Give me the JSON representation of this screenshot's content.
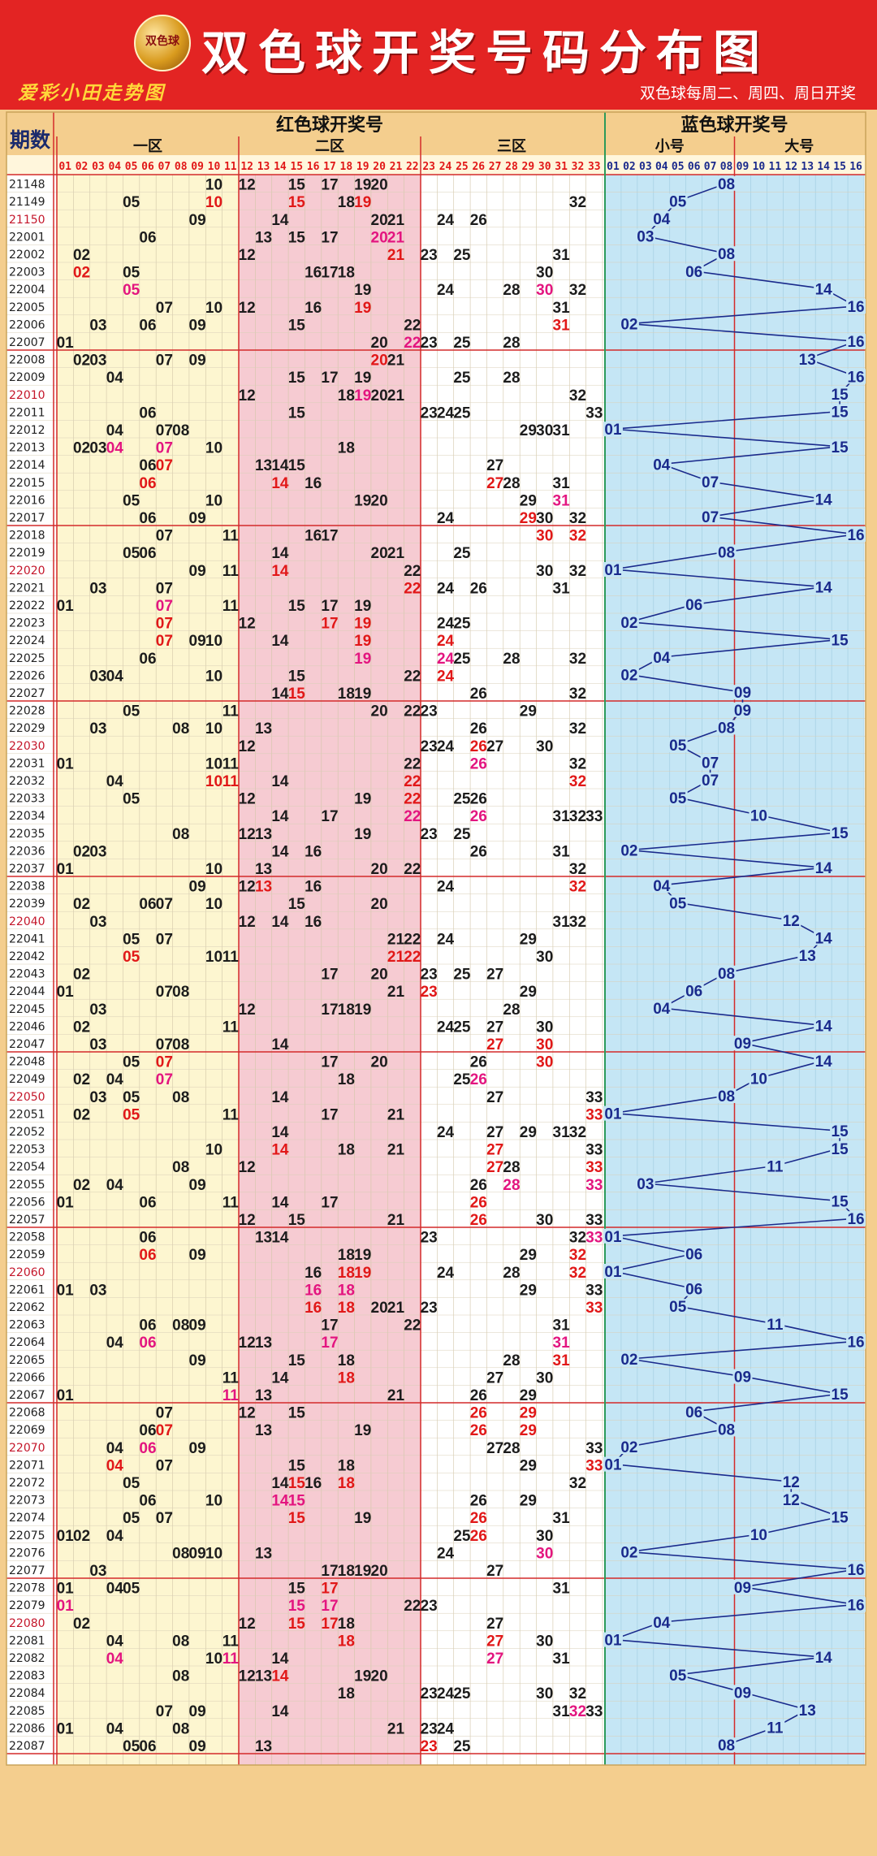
{
  "header": {
    "logo_text": "双色球",
    "title": "双色球开奖号码分布图",
    "brand": "爱彩小田走势图",
    "subtitle": "双色球每周二、周四、周日开奖"
  },
  "chart_data": {
    "type": "table",
    "period_header": "期数",
    "red_header": "红色球开奖号",
    "blue_header": "蓝色球开奖号",
    "zones": [
      "一区",
      "二区",
      "三区"
    ],
    "blue_zones": [
      "小号",
      "大号"
    ],
    "red_numbers": [
      "01",
      "02",
      "03",
      "04",
      "05",
      "06",
      "07",
      "08",
      "09",
      "10",
      "11",
      "12",
      "13",
      "14",
      "15",
      "16",
      "17",
      "18",
      "19",
      "20",
      "21",
      "22",
      "23",
      "24",
      "25",
      "26",
      "27",
      "28",
      "29",
      "30",
      "31",
      "32",
      "33"
    ],
    "blue_numbers": [
      "01",
      "02",
      "03",
      "04",
      "05",
      "06",
      "07",
      "08",
      "09",
      "10",
      "11",
      "12",
      "13",
      "14",
      "15",
      "16"
    ],
    "colors": {
      "red_number": "#e11818",
      "dark_number": "#1c1c1c",
      "pink_number": "#e3157f",
      "blue_number": "#1a2a8c",
      "zone_cream": "#fdf6d0",
      "zone_pink": "#f6cbd2",
      "zone_blue": "#c5e6f5"
    },
    "draws": [
      {
        "period": "21148",
        "reds": [
          10,
          12,
          15,
          17,
          19,
          20
        ],
        "blue": 8
      },
      {
        "period": "21149",
        "reds": [
          5,
          10,
          15,
          18,
          19,
          32
        ],
        "blue": 5
      },
      {
        "period": "21150",
        "reds": [
          9,
          14,
          20,
          21,
          24,
          26
        ],
        "blue": 4
      },
      {
        "period": "22001",
        "reds": [
          6,
          13,
          15,
          17,
          20,
          21
        ],
        "blue": 3
      },
      {
        "period": "22002",
        "reds": [
          2,
          12,
          21,
          23,
          25,
          31
        ],
        "blue": 8
      },
      {
        "period": "22003",
        "reds": [
          2,
          5,
          16,
          17,
          18,
          30
        ],
        "blue": 6
      },
      {
        "period": "22004",
        "reds": [
          5,
          19,
          24,
          28,
          30,
          32
        ],
        "blue": 14
      },
      {
        "period": "22005",
        "reds": [
          7,
          10,
          12,
          16,
          19,
          31
        ],
        "blue": 16
      },
      {
        "period": "22006",
        "reds": [
          3,
          6,
          9,
          15,
          22,
          31
        ],
        "blue": 2
      },
      {
        "period": "22007",
        "reds": [
          1,
          20,
          22,
          23,
          25,
          28
        ],
        "blue": 16
      },
      {
        "period": "22008",
        "reds": [
          2,
          3,
          7,
          9,
          20,
          21
        ],
        "blue": 13
      },
      {
        "period": "22009",
        "reds": [
          4,
          15,
          17,
          19,
          25,
          28
        ],
        "blue": 16
      },
      {
        "period": "22010",
        "reds": [
          12,
          18,
          19,
          20,
          21,
          32
        ],
        "blue": 15
      },
      {
        "period": "22011",
        "reds": [
          6,
          15,
          23,
          24,
          25,
          33
        ],
        "blue": 15
      },
      {
        "period": "22012",
        "reds": [
          4,
          7,
          8,
          29,
          30,
          31
        ],
        "blue": 1
      },
      {
        "period": "22013",
        "reds": [
          2,
          3,
          4,
          7,
          10,
          18
        ],
        "blue": 15
      },
      {
        "period": "22014",
        "reds": [
          6,
          7,
          13,
          14,
          15,
          27
        ],
        "blue": 4
      },
      {
        "period": "22015",
        "reds": [
          6,
          14,
          16,
          27,
          28,
          31
        ],
        "blue": 7
      },
      {
        "period": "22016",
        "reds": [
          5,
          10,
          19,
          20,
          29,
          31
        ],
        "blue": 14
      },
      {
        "period": "22017",
        "reds": [
          6,
          9,
          24,
          29,
          30,
          32
        ],
        "blue": 7
      },
      {
        "period": "22018",
        "reds": [
          7,
          11,
          16,
          17,
          30,
          32
        ],
        "blue": 16
      },
      {
        "period": "22019",
        "reds": [
          5,
          6,
          14,
          20,
          21,
          25
        ],
        "blue": 8
      },
      {
        "period": "22020",
        "reds": [
          9,
          11,
          14,
          22,
          30,
          32
        ],
        "blue": 1
      },
      {
        "period": "22021",
        "reds": [
          3,
          7,
          22,
          24,
          26,
          31
        ],
        "blue": 14
      },
      {
        "period": "22022",
        "reds": [
          1,
          7,
          11,
          15,
          17,
          19
        ],
        "blue": 6
      },
      {
        "period": "22023",
        "reds": [
          7,
          12,
          17,
          19,
          24,
          25
        ],
        "blue": 2
      },
      {
        "period": "22024",
        "reds": [
          7,
          9,
          10,
          14,
          19,
          24
        ],
        "blue": 15
      },
      {
        "period": "22025",
        "reds": [
          6,
          19,
          24,
          25,
          28,
          32
        ],
        "blue": 4
      },
      {
        "period": "22026",
        "reds": [
          3,
          4,
          10,
          15,
          22,
          24
        ],
        "blue": 2
      },
      {
        "period": "22027",
        "reds": [
          14,
          15,
          18,
          19,
          26,
          32
        ],
        "blue": 9
      },
      {
        "period": "22028",
        "reds": [
          5,
          11,
          20,
          22,
          23,
          29
        ],
        "blue": 9
      },
      {
        "period": "22029",
        "reds": [
          3,
          8,
          10,
          13,
          26,
          32
        ],
        "blue": 8
      },
      {
        "period": "22030",
        "reds": [
          12,
          23,
          24,
          26,
          27,
          30
        ],
        "blue": 5
      },
      {
        "period": "22031",
        "reds": [
          1,
          10,
          11,
          22,
          26,
          32
        ],
        "blue": 7
      },
      {
        "period": "22032",
        "reds": [
          4,
          10,
          11,
          14,
          22,
          32
        ],
        "blue": 7
      },
      {
        "period": "22033",
        "reds": [
          5,
          12,
          19,
          22,
          25,
          26
        ],
        "blue": 5
      },
      {
        "period": "22034",
        "reds": [
          14,
          17,
          22,
          26,
          31,
          32,
          33
        ],
        "blue": 10
      },
      {
        "period": "22035",
        "reds": [
          8,
          12,
          13,
          19,
          23,
          25
        ],
        "blue": 15
      },
      {
        "period": "22036",
        "reds": [
          2,
          3,
          14,
          16,
          26,
          31
        ],
        "blue": 2
      },
      {
        "period": "22037",
        "reds": [
          1,
          10,
          13,
          20,
          22,
          32
        ],
        "blue": 14
      },
      {
        "period": "22038",
        "reds": [
          9,
          12,
          13,
          16,
          24,
          32
        ],
        "blue": 4
      },
      {
        "period": "22039",
        "reds": [
          2,
          6,
          7,
          10,
          15,
          20
        ],
        "blue": 5
      },
      {
        "period": "22040",
        "reds": [
          3,
          12,
          14,
          16,
          31,
          32
        ],
        "blue": 12
      },
      {
        "period": "22041",
        "reds": [
          5,
          7,
          21,
          22,
          24,
          29
        ],
        "blue": 14
      },
      {
        "period": "22042",
        "reds": [
          5,
          10,
          11,
          21,
          22,
          30
        ],
        "blue": 13
      },
      {
        "period": "22043",
        "reds": [
          2,
          17,
          20,
          23,
          25,
          27
        ],
        "blue": 8
      },
      {
        "period": "22044",
        "reds": [
          1,
          7,
          8,
          21,
          23,
          29
        ],
        "blue": 6
      },
      {
        "period": "22045",
        "reds": [
          3,
          12,
          17,
          18,
          19,
          28
        ],
        "blue": 4
      },
      {
        "period": "22046",
        "reds": [
          2,
          11,
          24,
          25,
          27,
          30
        ],
        "blue": 14
      },
      {
        "period": "22047",
        "reds": [
          3,
          7,
          8,
          14,
          27,
          30
        ],
        "blue": 9
      },
      {
        "period": "22048",
        "reds": [
          5,
          7,
          17,
          20,
          26,
          30
        ],
        "blue": 14
      },
      {
        "period": "22049",
        "reds": [
          2,
          4,
          7,
          18,
          25,
          26
        ],
        "blue": 10
      },
      {
        "period": "22050",
        "reds": [
          3,
          5,
          8,
          14,
          27,
          33
        ],
        "blue": 8
      },
      {
        "period": "22051",
        "reds": [
          2,
          5,
          11,
          17,
          21,
          33
        ],
        "blue": 1
      },
      {
        "period": "22052",
        "reds": [
          14,
          24,
          27,
          29,
          31,
          32
        ],
        "blue": 15
      },
      {
        "period": "22053",
        "reds": [
          10,
          14,
          18,
          21,
          27,
          33
        ],
        "blue": 15
      },
      {
        "period": "22054",
        "reds": [
          8,
          12,
          27,
          28,
          33
        ],
        "blue": 11
      },
      {
        "period": "22055",
        "reds": [
          2,
          4,
          9,
          26,
          28,
          33
        ],
        "blue": 3
      },
      {
        "period": "22056",
        "reds": [
          1,
          6,
          11,
          14,
          17,
          26
        ],
        "blue": 15
      },
      {
        "period": "22057",
        "reds": [
          12,
          15,
          21,
          26,
          30,
          33
        ],
        "blue": 16
      },
      {
        "period": "22058",
        "reds": [
          6,
          13,
          14,
          23,
          32,
          33
        ],
        "blue": 1
      },
      {
        "period": "22059",
        "reds": [
          6,
          9,
          18,
          19,
          29,
          32
        ],
        "blue": 6
      },
      {
        "period": "22060",
        "reds": [
          16,
          18,
          19,
          24,
          28,
          32
        ],
        "blue": 1
      },
      {
        "period": "22061",
        "reds": [
          1,
          3,
          16,
          18,
          29,
          33
        ],
        "blue": 6
      },
      {
        "period": "22062",
        "reds": [
          16,
          18,
          20,
          21,
          23,
          33
        ],
        "blue": 5
      },
      {
        "period": "22063",
        "reds": [
          6,
          8,
          9,
          17,
          22,
          31
        ],
        "blue": 11
      },
      {
        "period": "22064",
        "reds": [
          4,
          6,
          12,
          13,
          17,
          31
        ],
        "blue": 16
      },
      {
        "period": "22065",
        "reds": [
          9,
          15,
          18,
          28,
          31
        ],
        "blue": 2
      },
      {
        "period": "22066",
        "reds": [
          11,
          14,
          18,
          27,
          30
        ],
        "blue": 9
      },
      {
        "period": "22067",
        "reds": [
          1,
          11,
          13,
          21,
          26,
          29
        ],
        "blue": 15
      },
      {
        "period": "22068",
        "reds": [
          7,
          12,
          15,
          26,
          29
        ],
        "blue": 6
      },
      {
        "period": "22069",
        "reds": [
          6,
          7,
          13,
          19,
          26,
          29
        ],
        "blue": 8
      },
      {
        "period": "22070",
        "reds": [
          4,
          6,
          9,
          27,
          28,
          33
        ],
        "blue": 2
      },
      {
        "period": "22071",
        "reds": [
          4,
          7,
          15,
          18,
          29,
          33
        ],
        "blue": 1
      },
      {
        "period": "22072",
        "reds": [
          5,
          14,
          15,
          16,
          18,
          32
        ],
        "blue": 12
      },
      {
        "period": "22073",
        "reds": [
          6,
          10,
          14,
          15,
          26,
          29
        ],
        "blue": 12
      },
      {
        "period": "22074",
        "reds": [
          5,
          7,
          15,
          19,
          26,
          31
        ],
        "blue": 15
      },
      {
        "period": "22075",
        "reds": [
          1,
          2,
          4,
          25,
          26,
          30
        ],
        "blue": 10
      },
      {
        "period": "22076",
        "reds": [
          8,
          9,
          10,
          13,
          24,
          30
        ],
        "blue": 2
      },
      {
        "period": "22077",
        "reds": [
          3,
          17,
          18,
          19,
          20,
          27
        ],
        "blue": 16
      },
      {
        "period": "22078",
        "reds": [
          1,
          4,
          5,
          15,
          17,
          31
        ],
        "blue": 9
      },
      {
        "period": "22079",
        "reds": [
          1,
          15,
          17,
          22,
          23
        ],
        "blue": 16
      },
      {
        "period": "22080",
        "reds": [
          2,
          12,
          15,
          17,
          18,
          27
        ],
        "blue": 4
      },
      {
        "period": "22081",
        "reds": [
          4,
          8,
          11,
          18,
          27,
          30
        ],
        "blue": 1
      },
      {
        "period": "22082",
        "reds": [
          4,
          10,
          11,
          14,
          27,
          31
        ],
        "blue": 14
      },
      {
        "period": "22083",
        "reds": [
          8,
          12,
          13,
          14,
          19,
          20
        ],
        "blue": 5
      },
      {
        "period": "22084",
        "reds": [
          18,
          23,
          24,
          25,
          30,
          32
        ],
        "blue": 9
      },
      {
        "period": "22085",
        "reds": [
          7,
          9,
          14,
          31,
          32,
          33
        ],
        "blue": 13
      },
      {
        "period": "22086",
        "reds": [
          1,
          4,
          8,
          21,
          23,
          24
        ],
        "blue": 11
      },
      {
        "period": "22087",
        "reds": [
          5,
          6,
          9,
          13,
          23,
          25
        ],
        "blue": 8
      }
    ],
    "highlight_periods": [
      "21150",
      "22010",
      "22020",
      "22030",
      "22040",
      "22050",
      "22060",
      "22070",
      "22080"
    ]
  }
}
